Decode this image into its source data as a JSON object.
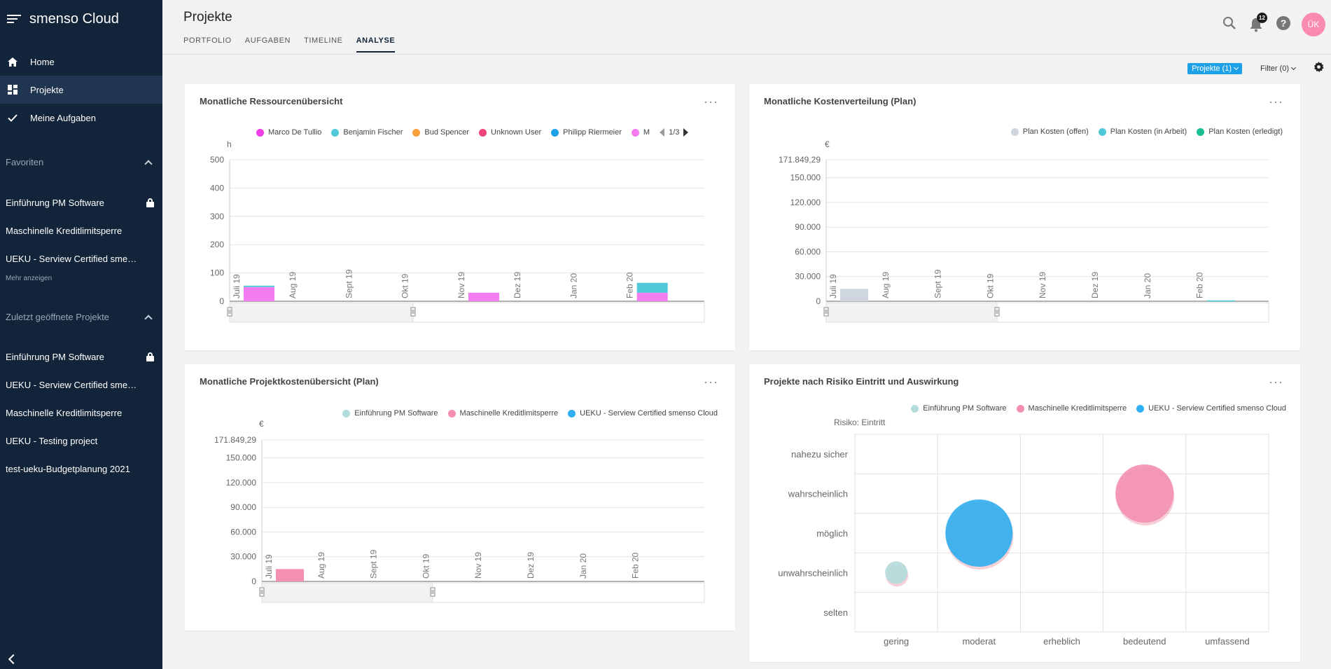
{
  "app": {
    "title": "smenso Cloud"
  },
  "sidebar": {
    "nav": [
      {
        "label": "Home",
        "icon": "home-icon"
      },
      {
        "label": "Projekte",
        "icon": "dashboard-icon",
        "active": true
      },
      {
        "label": "Meine Aufgaben",
        "icon": "check-icon"
      }
    ],
    "favorites_label": "Favoriten",
    "favorites": [
      {
        "label": "Einführung PM Software",
        "locked": true
      },
      {
        "label": "Maschinelle Kreditlimitsperre",
        "locked": false
      },
      {
        "label": "UEKU - Serview Certified smenso Cloud",
        "locked": false
      }
    ],
    "more_label": "Mehr anzeigen",
    "recent_label": "Zuletzt geöffnete Projekte",
    "recent": [
      {
        "label": "Einführung PM Software",
        "locked": true
      },
      {
        "label": "UEKU - Serview Certified smenso Cloud",
        "locked": false
      },
      {
        "label": "Maschinelle Kreditlimitsperre",
        "locked": false
      },
      {
        "label": "UEKU - Testing project",
        "locked": false
      },
      {
        "label": "test-ueku-Budgetplanung 2021",
        "locked": false
      }
    ]
  },
  "header": {
    "title": "Projekte",
    "tabs": [
      "PORTFOLIO",
      "AUFGABEN",
      "TIMELINE",
      "ANALYSE"
    ],
    "active_tab": "ANALYSE",
    "notifications": "12",
    "avatar": "ÜK"
  },
  "toolbar": {
    "projects_label": "Projekte (1)",
    "filter_label": "Filter (0)"
  },
  "colors": {
    "sidebar": "#12243a",
    "accent": "#1ea1e6",
    "pink": "#f48fb1",
    "magenta": "#f27cf0",
    "cyan": "#4fc9d8",
    "teal_light": "#b3dcdc",
    "blue": "#2faef0"
  },
  "chart_data": [
    {
      "type": "bar",
      "title": "Monatliche Ressourcenübersicht",
      "ylabel": "h",
      "ylim": [
        0,
        500
      ],
      "yticks": [
        "0",
        "100",
        "200",
        "300",
        "400",
        "500"
      ],
      "categories": [
        "Juli 19",
        "Aug 19",
        "Sept 19",
        "Okt 19",
        "Nov 19",
        "Dez 19",
        "Jan 20",
        "Feb 20"
      ],
      "legend": [
        "Marco De Tullio",
        "Benjamin Fischer",
        "Bud Spencer",
        "Unknown User",
        "Philipp Riermeier",
        "M"
      ],
      "legend_colors": [
        "#f03ee8",
        "#4fc9d8",
        "#f9a03a",
        "#f0457a",
        "#1ea1e6",
        "#f27cf0"
      ],
      "pager": "1/3",
      "series": [
        {
          "name": "Marco De Tullio",
          "values": [
            50,
            0,
            0,
            0,
            30,
            0,
            0,
            30
          ]
        },
        {
          "name": "Benjamin Fischer",
          "values": [
            5,
            0,
            0,
            0,
            0,
            0,
            0,
            35
          ]
        }
      ]
    },
    {
      "type": "bar",
      "title": "Monatliche Kostenverteilung (Plan)",
      "ylabel": "€",
      "ylim": [
        0,
        171849.29
      ],
      "yticks": [
        "0",
        "30.000",
        "60.000",
        "90.000",
        "120.000",
        "150.000",
        "171.849,29"
      ],
      "categories": [
        "Juli 19",
        "Aug 19",
        "Sept 19",
        "Okt 19",
        "Nov 19",
        "Dez 19",
        "Jan 20",
        "Feb 20"
      ],
      "legend": [
        "Plan Kosten (offen)",
        "Plan Kosten (in Arbeit)",
        "Plan Kosten (erledigt)"
      ],
      "legend_colors": [
        "#cfd6dd",
        "#4fc9d8",
        "#1bbf94"
      ],
      "series": [
        {
          "name": "Plan Kosten (offen)",
          "values": [
            15000,
            0,
            0,
            0,
            0,
            0,
            0,
            0
          ]
        },
        {
          "name": "Plan Kosten (in Arbeit)",
          "values": [
            0,
            0,
            0,
            0,
            0,
            0,
            0,
            1000
          ]
        }
      ]
    },
    {
      "type": "bar",
      "title": "Monatliche Projektkostenübersicht (Plan)",
      "ylabel": "€",
      "ylim": [
        0,
        171849.29
      ],
      "yticks": [
        "0",
        "30.000",
        "60.000",
        "90.000",
        "120.000",
        "150.000",
        "171.849,29"
      ],
      "categories": [
        "Juli 19",
        "Aug 19",
        "Sept 19",
        "Okt 19",
        "Nov 19",
        "Dez 19",
        "Jan 20",
        "Feb 20"
      ],
      "legend": [
        "Einführung PM Software",
        "Maschinelle Kreditlimitsperre",
        "UEKU - Serview Certified smenso Cloud"
      ],
      "legend_colors": [
        "#b3dcdc",
        "#f48fb1",
        "#2faef0"
      ],
      "series": [
        {
          "name": "Maschinelle Kreditlimitsperre",
          "values": [
            15000,
            0,
            0,
            0,
            0,
            0,
            0,
            0
          ]
        }
      ]
    },
    {
      "type": "scatter",
      "title": "Projekte nach Risiko Eintritt und Auswirkung",
      "ylabel": "Risiko: Eintritt",
      "y_categories": [
        "selten",
        "unwahrscheinlich",
        "möglich",
        "wahrscheinlich",
        "nahezu sicher"
      ],
      "x_categories": [
        "gering",
        "moderat",
        "erheblich",
        "bedeutend",
        "umfassend"
      ],
      "legend": [
        "Einführung PM Software",
        "Maschinelle Kreditlimitsperre",
        "UEKU - Serview Certified smenso Cloud"
      ],
      "legend_colors": [
        "#b3dcdc",
        "#f48fb1",
        "#2faef0"
      ],
      "points": [
        {
          "name": "Einführung PM Software",
          "x": "gering",
          "y": "unwahrscheinlich",
          "size": 1
        },
        {
          "name": "UEKU - Serview Certified smenso Cloud",
          "x": "moderat",
          "y": "möglich",
          "size": 3
        },
        {
          "name": "Maschinelle Kreditlimitsperre",
          "x": "bedeutend",
          "y": "wahrscheinlich",
          "size": 2.6
        }
      ]
    }
  ]
}
